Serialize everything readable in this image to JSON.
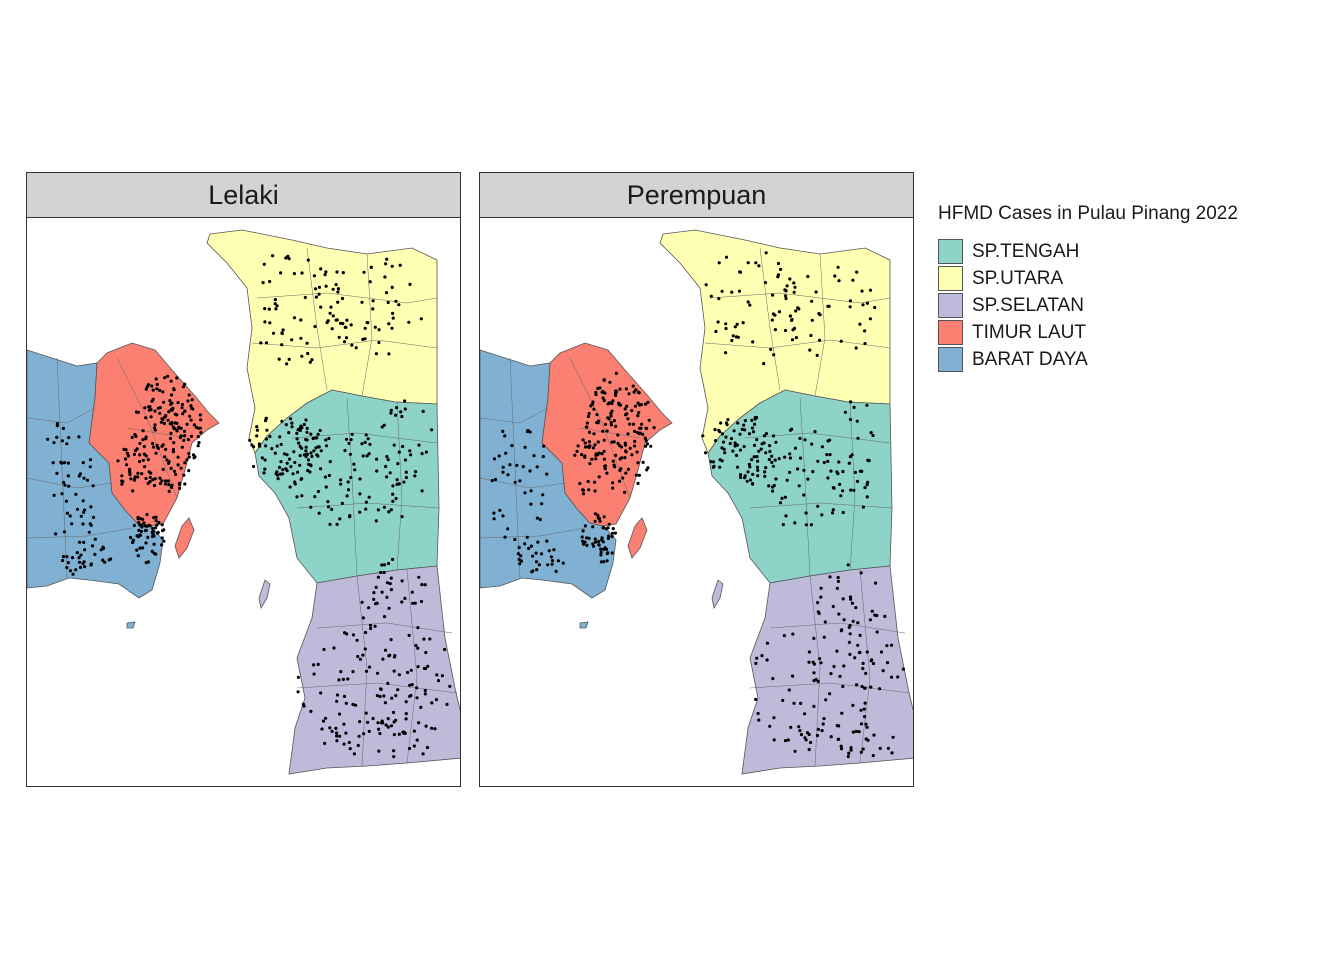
{
  "panels": [
    {
      "title": "Lelaki"
    },
    {
      "title": "Perempuan"
    }
  ],
  "legend": {
    "title": "HFMD Cases in Pulau Pinang 2022",
    "items": [
      {
        "label": "SP.TENGAH",
        "color": "#8dd3c7"
      },
      {
        "label": "SP.UTARA",
        "color": "#ffffb3"
      },
      {
        "label": "SP.SELATAN",
        "color": "#bebada"
      },
      {
        "label": "TIMUR LAUT",
        "color": "#fb8072"
      },
      {
        "label": "BARAT DAYA",
        "color": "#80b1d3"
      }
    ]
  },
  "colors": {
    "point": "#000000",
    "border": "#555555",
    "header_bg": "#d3d3d3"
  },
  "districts": {
    "sp_utara": "SP.UTARA",
    "sp_tengah": "SP.TENGAH",
    "sp_selatan": "SP.SELATAN",
    "timur_laut": "TIMUR LAUT",
    "barat_daya": "BARAT DAYA"
  }
}
